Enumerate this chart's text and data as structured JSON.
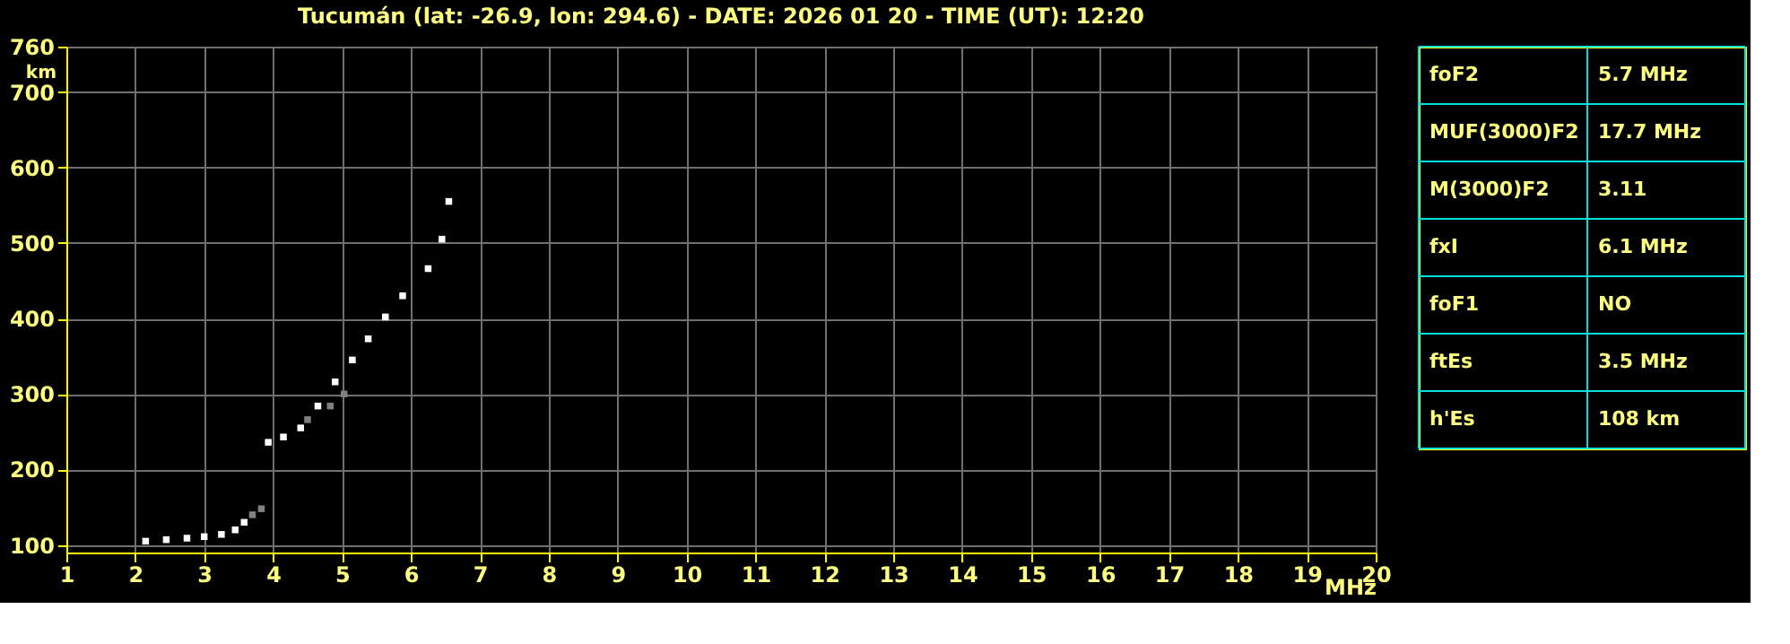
{
  "chart_data": {
    "type": "scatter",
    "title": "Tucumán (lat: -26.9, lon: 294.6) - DATE: 2026 01 20 - TIME (UT): 12:20",
    "xlabel": "MHz",
    "ylabel": "km",
    "series": [
      {
        "color": "#ffffff",
        "x": [
          2.15,
          2.45,
          2.75,
          3.0,
          3.25,
          3.45,
          3.58,
          3.93,
          4.15,
          4.4,
          4.65,
          4.9,
          5.15,
          5.38,
          5.63,
          5.88,
          6.25,
          6.45,
          6.55
        ],
        "values": [
          105,
          107,
          109,
          111,
          114,
          120,
          130,
          236,
          243,
          255,
          284,
          316,
          345,
          373,
          402,
          430,
          466,
          505,
          555
        ]
      },
      {
        "color": "#808080",
        "x": [
          3.7,
          3.83,
          4.5,
          4.83,
          5.03
        ],
        "values": [
          140,
          148,
          266,
          284,
          300
        ]
      }
    ],
    "xlim": [
      1,
      20
    ],
    "xticks": [
      1,
      2,
      3,
      4,
      5,
      6,
      7,
      8,
      9,
      10,
      11,
      12,
      13,
      14,
      15,
      16,
      17,
      18,
      19,
      20
    ],
    "ylim": [
      90,
      760
    ],
    "yticks": [
      100,
      200,
      300,
      400,
      500,
      600,
      700,
      760
    ],
    "grid": true,
    "marker": "square",
    "annotations": [
      "foF2",
      "5.7 MHz",
      "MUF(3000)F2",
      "17.7 MHz",
      "M(3000)F2",
      "3.11",
      "fxI",
      "6.1 MHz",
      "foF1",
      "NO",
      "ftEs",
      "3.5 MHz",
      "h'Es",
      "108 km"
    ]
  }
}
